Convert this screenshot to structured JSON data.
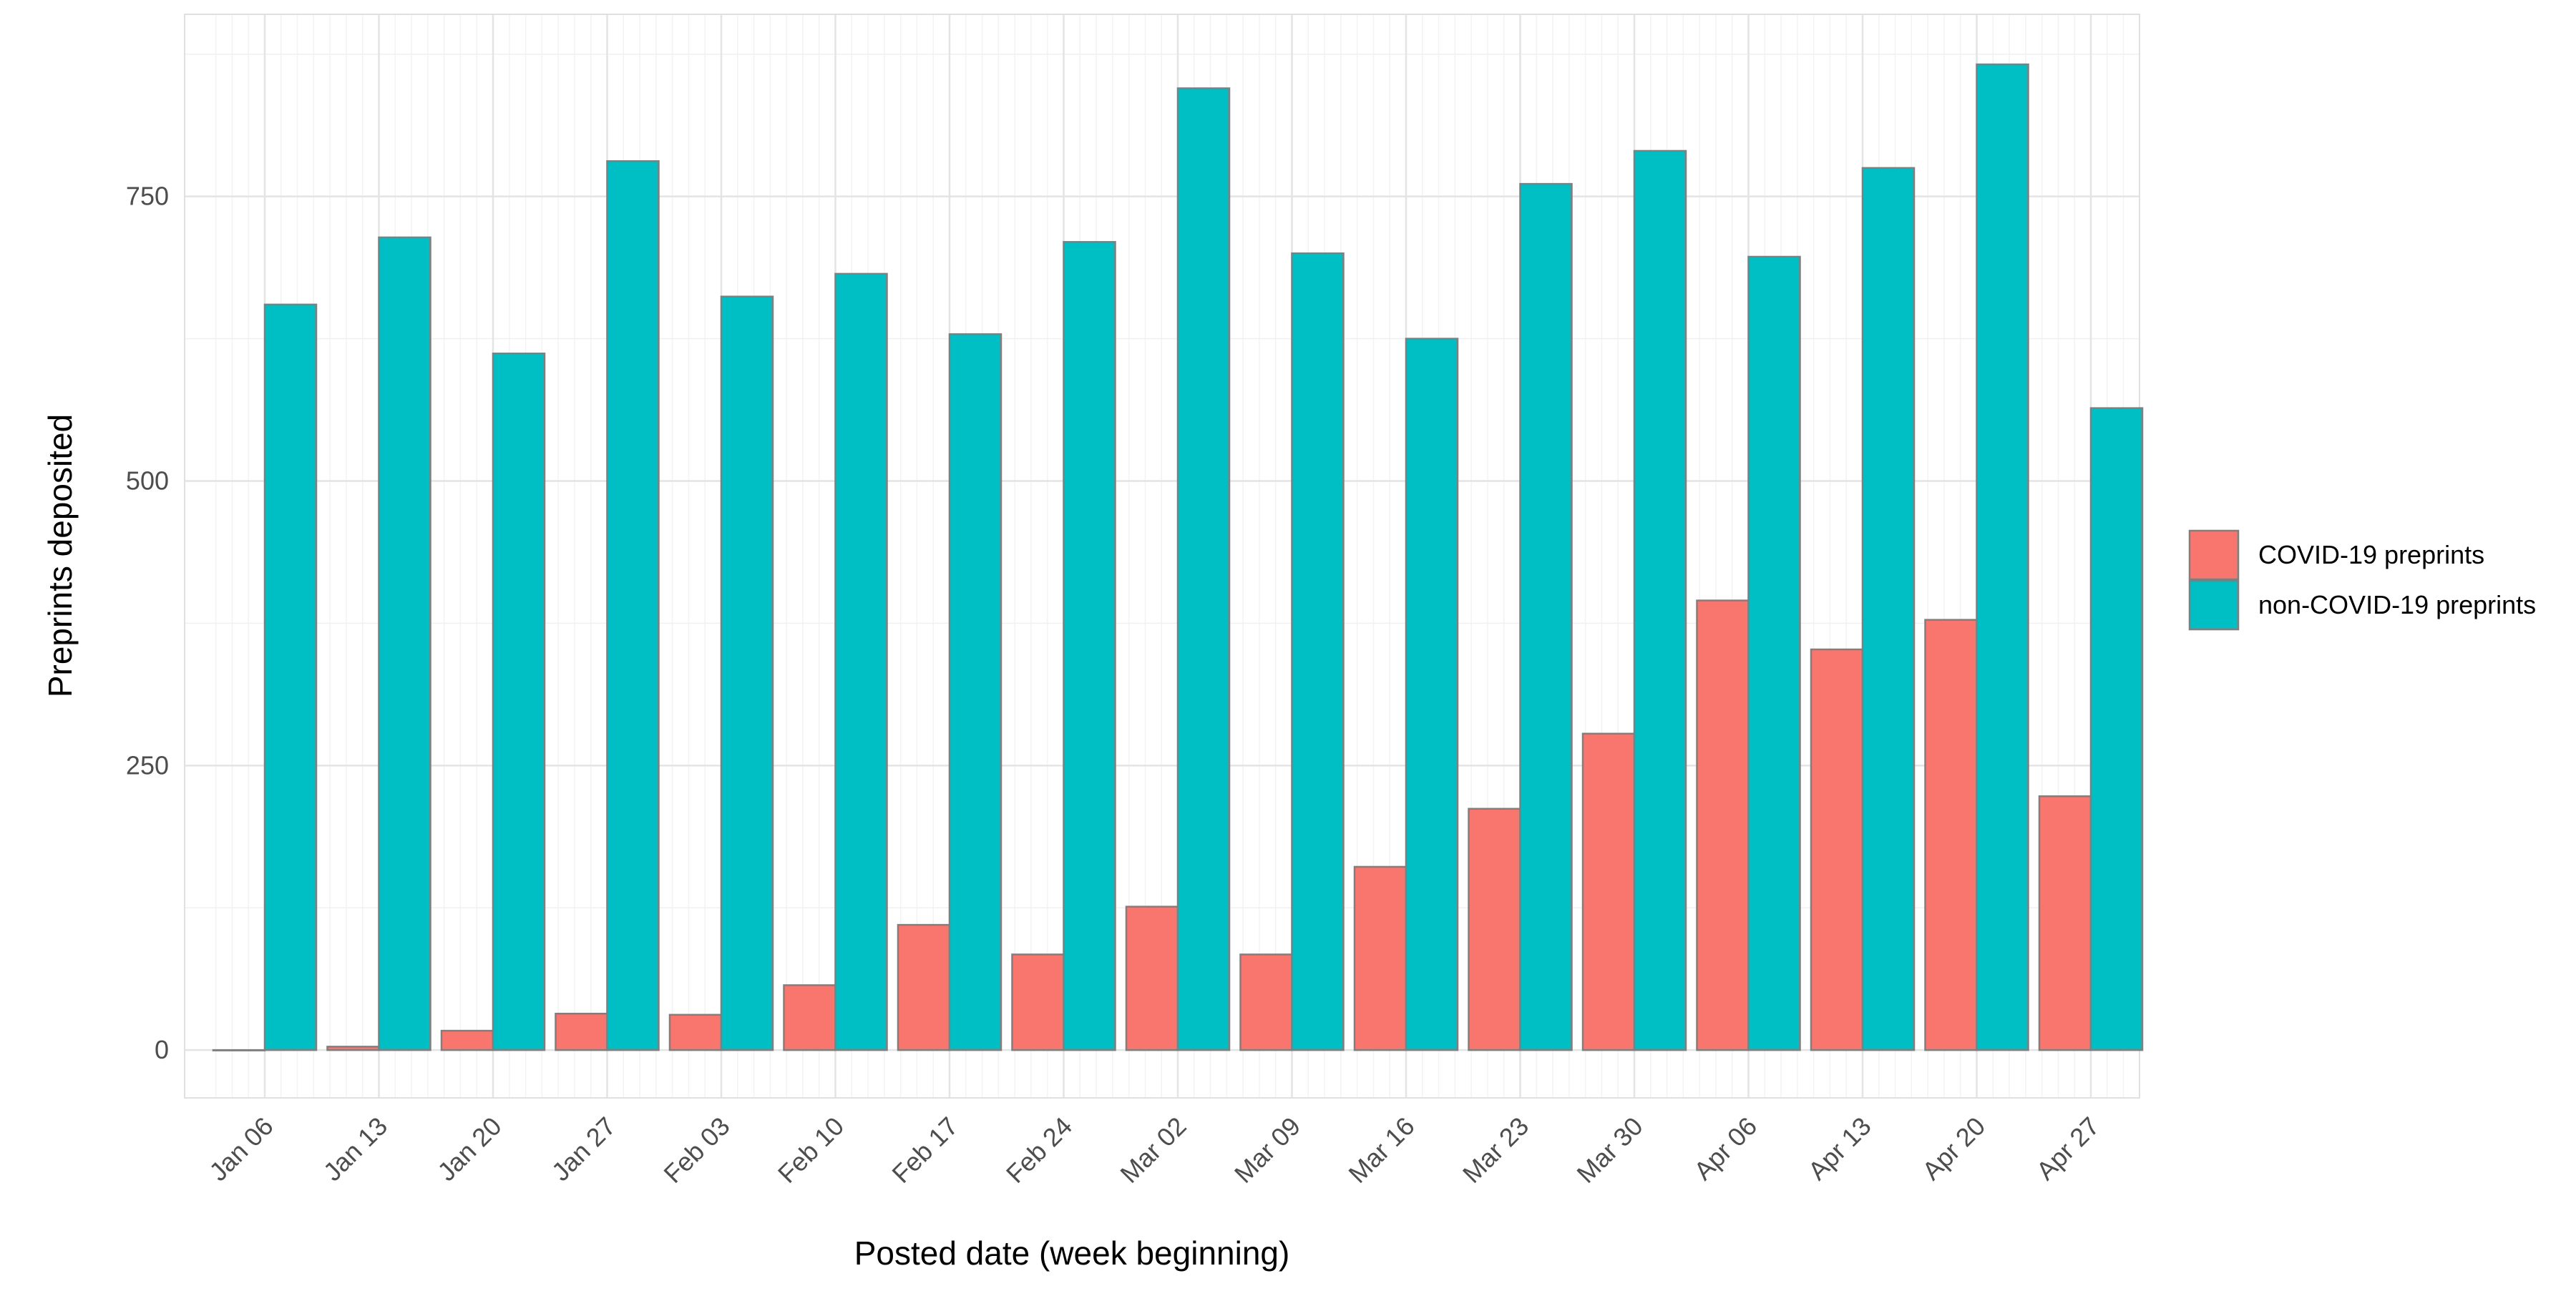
{
  "chart_data": {
    "type": "bar",
    "title": "",
    "xlabel": "Posted date (week beginning)",
    "ylabel": "Preprints deposited",
    "categories": [
      "Jan 06",
      "Jan 13",
      "Jan 20",
      "Jan 27",
      "Feb 03",
      "Feb 10",
      "Feb 17",
      "Feb 24",
      "Mar 02",
      "Mar 09",
      "Mar 16",
      "Mar 23",
      "Mar 30",
      "Apr 06",
      "Apr 13",
      "Apr 20",
      "Apr 27"
    ],
    "series": [
      {
        "name": "COVID-19 preprints",
        "color": "#F8766D",
        "values": [
          0,
          3,
          17,
          32,
          31,
          57,
          110,
          84,
          126,
          84,
          161,
          212,
          278,
          395,
          352,
          378,
          223
        ]
      },
      {
        "name": "non-COVID-19 preprints",
        "color": "#00BFC4",
        "values": [
          655,
          714,
          612,
          781,
          662,
          682,
          629,
          710,
          845,
          700,
          625,
          761,
          790,
          697,
          775,
          866,
          564
        ]
      }
    ],
    "ylim": [
      -42,
      910
    ],
    "yticks": [
      0,
      250,
      500,
      750
    ],
    "ytick_labels": [
      "0",
      "250",
      "500",
      "750"
    ],
    "grid": true,
    "legend_position": "right"
  }
}
